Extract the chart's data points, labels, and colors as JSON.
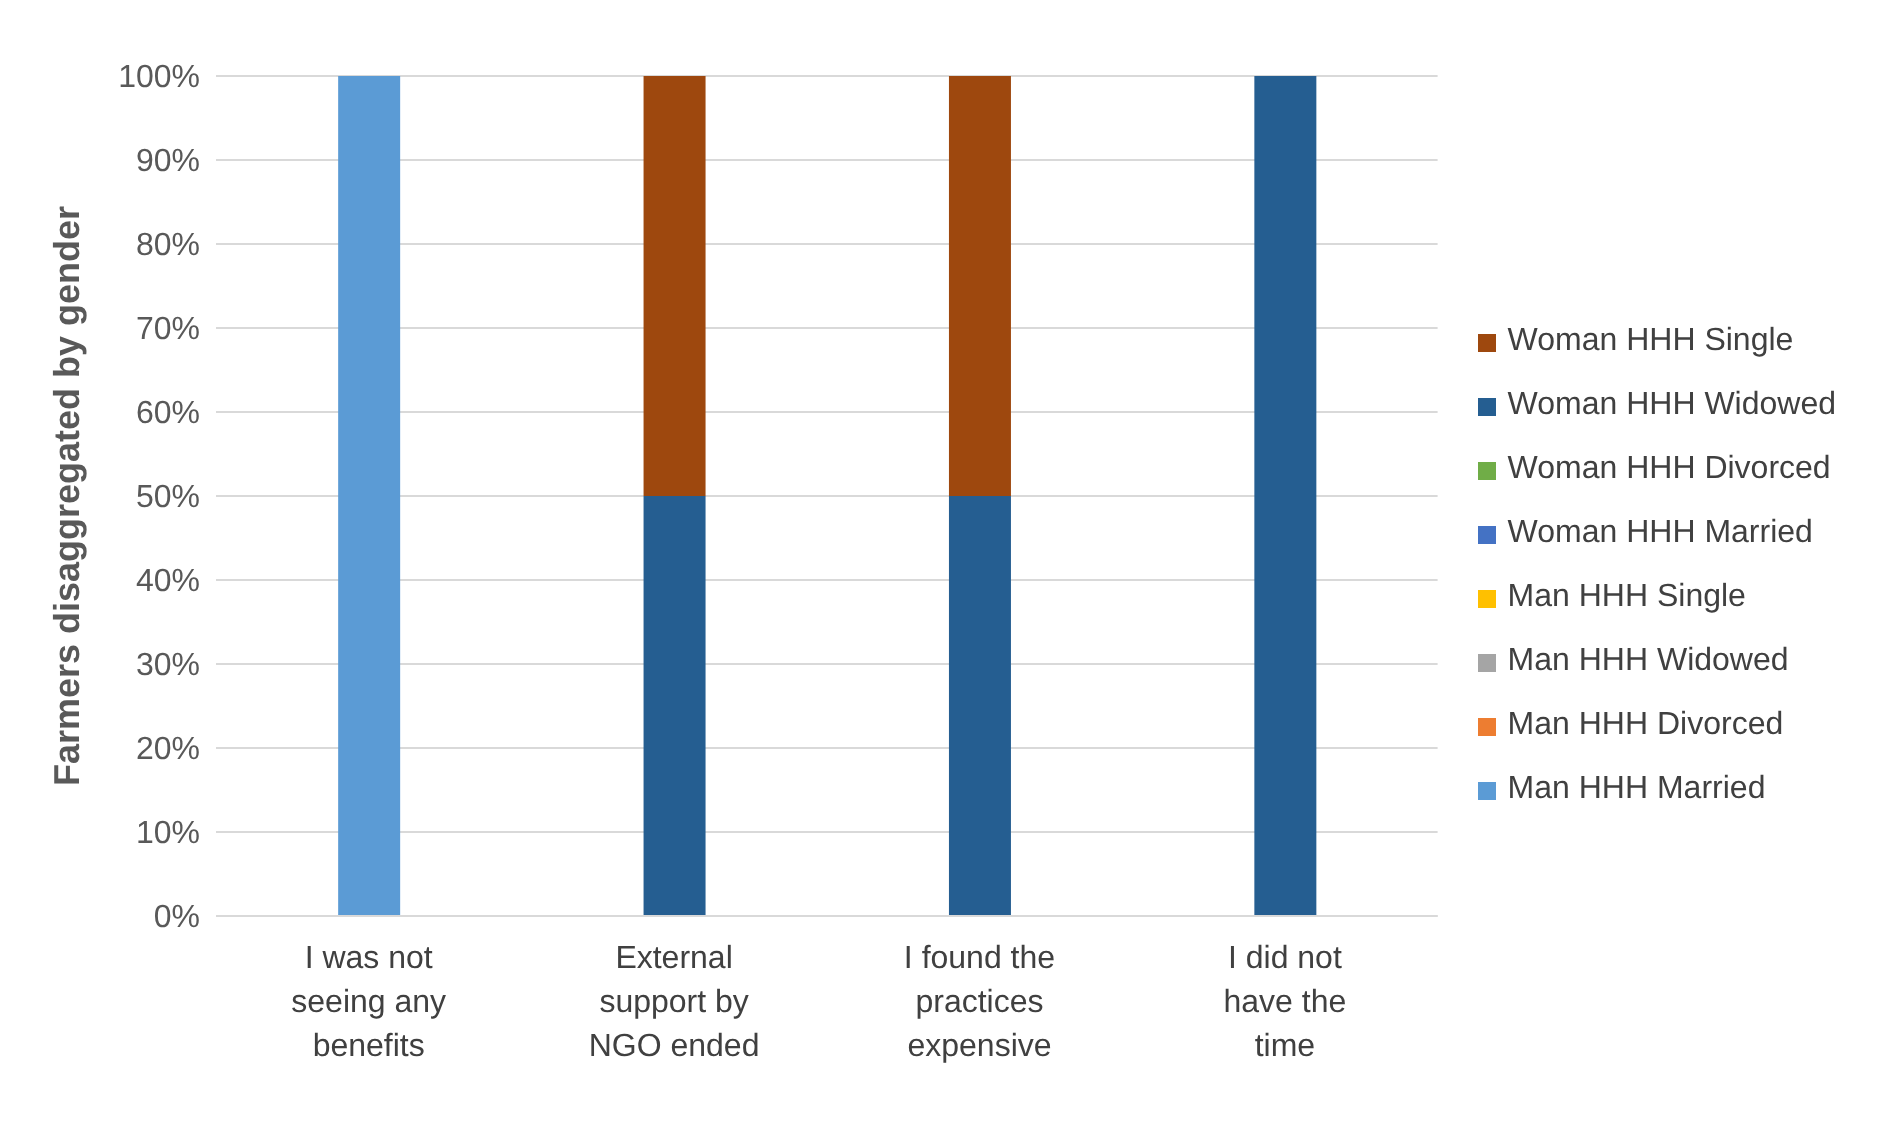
{
  "chart_data": {
    "type": "bar",
    "stacked": true,
    "ylabel": "Farmers disaggregated by gender",
    "categories": [
      "I was not seeing any benefits",
      "External support by NGO ended",
      "I found the practices expensive",
      "I did not have the time"
    ],
    "series": [
      {
        "name": "Man HHH Married",
        "color": "#5b9bd5",
        "values": [
          100,
          0,
          0,
          0
        ]
      },
      {
        "name": "Man HHH Divorced",
        "color": "#ed7d31",
        "values": [
          0,
          0,
          0,
          0
        ]
      },
      {
        "name": "Man HHH Widowed",
        "color": "#a5a5a5",
        "values": [
          0,
          0,
          0,
          0
        ]
      },
      {
        "name": "Man HHH Single",
        "color": "#ffc000",
        "values": [
          0,
          0,
          0,
          0
        ]
      },
      {
        "name": "Woman HHH Married",
        "color": "#4472c4",
        "values": [
          0,
          0,
          0,
          0
        ]
      },
      {
        "name": "Woman HHH Divorced",
        "color": "#70ad47",
        "values": [
          0,
          0,
          0,
          0
        ]
      },
      {
        "name": "Woman HHH Widowed",
        "color": "#255e91",
        "values": [
          0,
          50,
          50,
          100
        ]
      },
      {
        "name": "Woman HHH Single",
        "color": "#9e480e",
        "values": [
          0,
          50,
          50,
          0
        ]
      }
    ],
    "ylim": [
      0,
      100
    ],
    "yticks": [
      {
        "value": 0,
        "label": "0%"
      },
      {
        "value": 10,
        "label": "10%"
      },
      {
        "value": 20,
        "label": "20%"
      },
      {
        "value": 30,
        "label": "30%"
      },
      {
        "value": 40,
        "label": "40%"
      },
      {
        "value": 50,
        "label": "50%"
      },
      {
        "value": 60,
        "label": "60%"
      },
      {
        "value": 70,
        "label": "70%"
      },
      {
        "value": 80,
        "label": "80%"
      },
      {
        "value": 90,
        "label": "90%"
      },
      {
        "value": 100,
        "label": "100%"
      }
    ],
    "grid": "y",
    "legend": "right"
  }
}
